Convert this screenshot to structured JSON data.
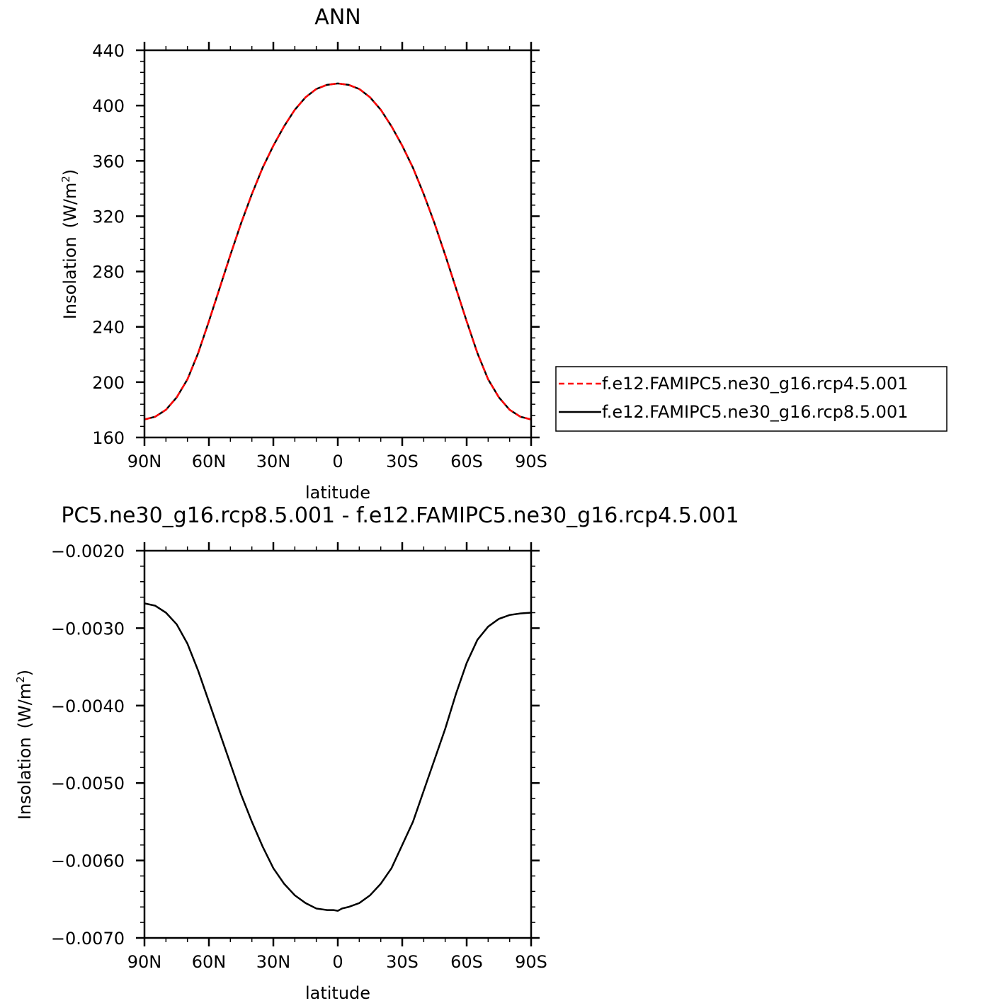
{
  "chart_data": [
    {
      "type": "line",
      "title": "ANN",
      "xlabel": "latitude",
      "ylabel": "Insolation",
      "ylabel_units": "(W/m",
      "ylabel_units_sup": "2",
      "ylabel_units_close": ")",
      "xlim": [
        -90,
        90
      ],
      "ylim": [
        160,
        440
      ],
      "x_ticks": [
        -90,
        -60,
        -30,
        0,
        30,
        60,
        90
      ],
      "x_tick_labels": [
        "90N",
        "60N",
        "30N",
        "0",
        "30S",
        "60S",
        "90S"
      ],
      "y_ticks": [
        160,
        200,
        240,
        280,
        320,
        360,
        400,
        440
      ],
      "y_tick_labels": [
        "160",
        "200",
        "240",
        "280",
        "320",
        "360",
        "400",
        "440"
      ],
      "grid": false,
      "legend_position": "right",
      "series": [
        {
          "name": "f.e12.FAMIPC5.ne30_g16.rcp4.5.001",
          "color": "#ff0000",
          "dash": "dashed",
          "x": [
            -90,
            -85,
            -80,
            -75,
            -70,
            -65,
            -60,
            -55,
            -50,
            -45,
            -40,
            -35,
            -30,
            -25,
            -20,
            -15,
            -10,
            -5,
            0,
            5,
            10,
            15,
            20,
            25,
            30,
            35,
            40,
            45,
            50,
            55,
            60,
            65,
            70,
            75,
            80,
            85,
            90
          ],
          "values": [
            173,
            175,
            180,
            189,
            202,
            221,
            244,
            268,
            292,
            315,
            336,
            355,
            371,
            385,
            397,
            406,
            412,
            415,
            416,
            415,
            412,
            406,
            397,
            385,
            371,
            355,
            336,
            315,
            292,
            268,
            244,
            221,
            202,
            189,
            180,
            175,
            173
          ]
        },
        {
          "name": "f.e12.FAMIPC5.ne30_g16.rcp8.5.001",
          "color": "#000000",
          "dash": "solid",
          "x": [
            -90,
            -85,
            -80,
            -75,
            -70,
            -65,
            -60,
            -55,
            -50,
            -45,
            -40,
            -35,
            -30,
            -25,
            -20,
            -15,
            -10,
            -5,
            0,
            5,
            10,
            15,
            20,
            25,
            30,
            35,
            40,
            45,
            50,
            55,
            60,
            65,
            70,
            75,
            80,
            85,
            90
          ],
          "values": [
            173,
            175,
            180,
            189,
            202,
            221,
            244,
            268,
            292,
            315,
            336,
            355,
            371,
            385,
            397,
            406,
            412,
            415,
            416,
            415,
            412,
            406,
            397,
            385,
            371,
            355,
            336,
            315,
            292,
            268,
            244,
            221,
            202,
            189,
            180,
            175,
            173
          ]
        }
      ]
    },
    {
      "type": "line",
      "title": "PC5.ne30_g16.rcp8.5.001 - f.e12.FAMIPC5.ne30_g16.rcp4.5.001",
      "xlabel": "latitude",
      "ylabel": "Insolation",
      "ylabel_units": "(W/m",
      "ylabel_units_sup": "2",
      "ylabel_units_close": ")",
      "xlim": [
        -90,
        90
      ],
      "ylim": [
        -0.007,
        -0.002
      ],
      "x_ticks": [
        -90,
        -60,
        -30,
        0,
        30,
        60,
        90
      ],
      "x_tick_labels": [
        "90N",
        "60N",
        "30N",
        "0",
        "30S",
        "60S",
        "90S"
      ],
      "y_ticks": [
        -0.007,
        -0.006,
        -0.005,
        -0.004,
        -0.003,
        -0.002
      ],
      "y_tick_labels": [
        "−0.0070",
        "−0.0060",
        "−0.0050",
        "−0.0040",
        "−0.0030",
        "−0.0020"
      ],
      "grid": false,
      "series": [
        {
          "color": "#000000",
          "dash": "solid",
          "x": [
            -90,
            -85,
            -80,
            -75,
            -70,
            -65,
            -60,
            -55,
            -50,
            -45,
            -40,
            -35,
            -30,
            -25,
            -20,
            -15,
            -10,
            -5,
            -2,
            0,
            2,
            5,
            10,
            15,
            20,
            25,
            30,
            35,
            40,
            45,
            50,
            55,
            60,
            65,
            70,
            75,
            80,
            85,
            90
          ],
          "values": [
            -0.00268,
            -0.00271,
            -0.0028,
            -0.00295,
            -0.0032,
            -0.00355,
            -0.00395,
            -0.00435,
            -0.00475,
            -0.00515,
            -0.0055,
            -0.00582,
            -0.0061,
            -0.0063,
            -0.00645,
            -0.00655,
            -0.00662,
            -0.00664,
            -0.00664,
            -0.00665,
            -0.00662,
            -0.0066,
            -0.00655,
            -0.00645,
            -0.0063,
            -0.0061,
            -0.0058,
            -0.0055,
            -0.0051,
            -0.0047,
            -0.0043,
            -0.00385,
            -0.00345,
            -0.00315,
            -0.00298,
            -0.00288,
            -0.00283,
            -0.00281,
            -0.0028
          ]
        }
      ]
    }
  ]
}
